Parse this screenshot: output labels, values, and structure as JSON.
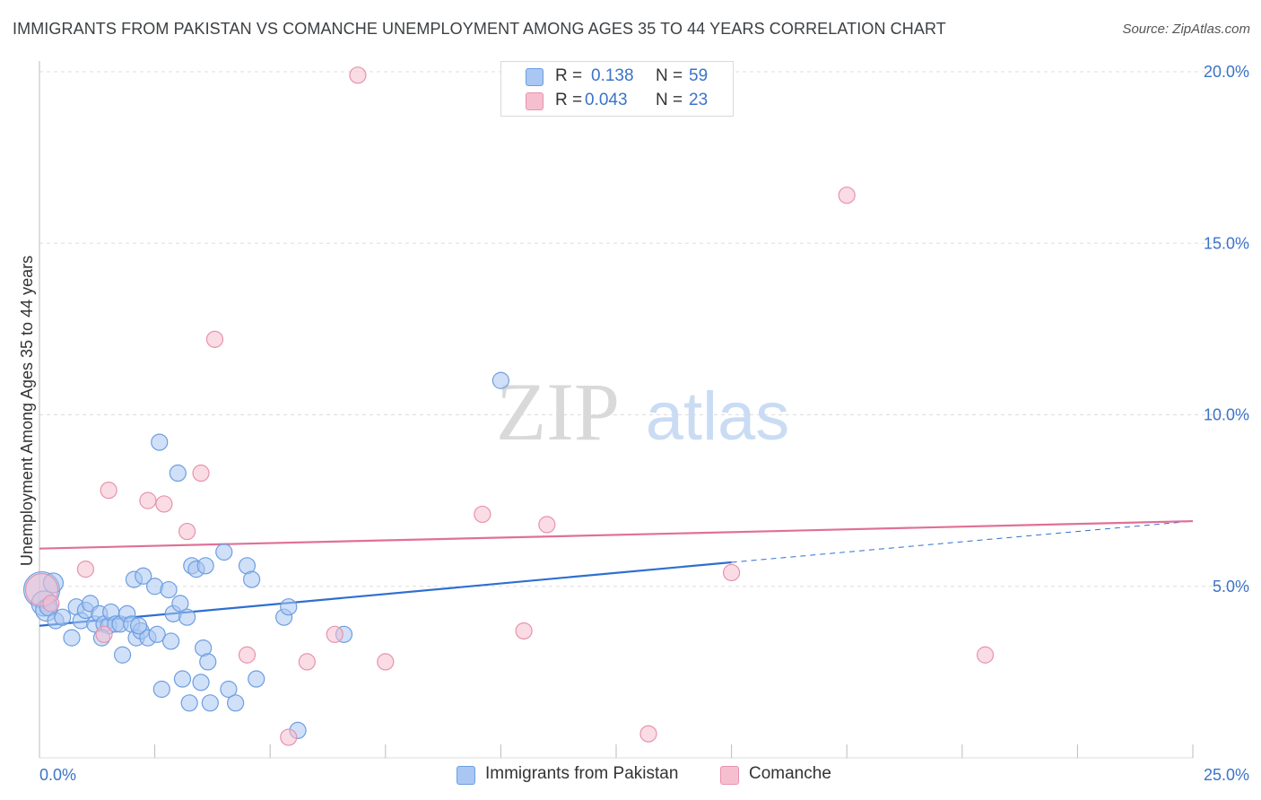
{
  "header": {
    "title": "IMMIGRANTS FROM PAKISTAN VS COMANCHE UNEMPLOYMENT AMONG AGES 35 TO 44 YEARS CORRELATION CHART",
    "source": "Source: ZipAtlas.com"
  },
  "legend": {
    "series1": {
      "r_label": "R =",
      "r_value": "0.138",
      "n_label": "N =",
      "n_value": "59"
    },
    "series2": {
      "r_label": "R =",
      "r_value": "0.043",
      "n_label": "N =",
      "n_value": "23"
    }
  },
  "bottom_legend": {
    "series1": "Immigrants from Pakistan",
    "series2": "Comanche"
  },
  "colors": {
    "blue_fill": "#a9c7f2",
    "blue_stroke": "#6d9ee0",
    "blue_line": "#2f6fd0",
    "pink_fill": "#f6bfd0",
    "pink_stroke": "#e892ae",
    "pink_line": "#e07099",
    "tick_text": "#3b73c8",
    "grid": "#dddddd"
  },
  "chart_data": {
    "type": "scatter",
    "title": "IMMIGRANTS FROM PAKISTAN VS COMANCHE UNEMPLOYMENT AMONG AGES 35 TO 44 YEARS CORRELATION CHART",
    "xlabel": "",
    "ylabel": "Unemployment Among Ages 35 to 44 years",
    "xlim": [
      0,
      25
    ],
    "ylim": [
      0,
      20.5
    ],
    "x_tick_labels": [
      {
        "value": 0,
        "label": "0.0%"
      },
      {
        "value": 25,
        "label": "25.0%"
      }
    ],
    "y_tick_labels": [
      {
        "value": 5,
        "label": "5.0%"
      },
      {
        "value": 10,
        "label": "10.0%"
      },
      {
        "value": 15,
        "label": "15.0%"
      },
      {
        "value": 20,
        "label": "20.0%"
      }
    ],
    "watermark": {
      "part1": "ZIP",
      "part2": "atlas"
    },
    "series": [
      {
        "name": "Immigrants from Pakistan",
        "color": "#a9c7f2",
        "points": [
          [
            0.05,
            4.9,
            20
          ],
          [
            0.1,
            4.5,
            14
          ],
          [
            0.15,
            4.3,
            12
          ],
          [
            0.2,
            4.4,
            10
          ],
          [
            0.3,
            5.1,
            11
          ],
          [
            0.35,
            4.0,
            9
          ],
          [
            0.5,
            4.1,
            9
          ],
          [
            0.7,
            3.5,
            9
          ],
          [
            0.8,
            4.4,
            9
          ],
          [
            0.9,
            4.0,
            9
          ],
          [
            1.0,
            4.3,
            9
          ],
          [
            1.1,
            4.5,
            9
          ],
          [
            1.2,
            3.9,
            9
          ],
          [
            1.3,
            4.2,
            9
          ],
          [
            1.4,
            3.9,
            9
          ],
          [
            1.5,
            3.85,
            9
          ],
          [
            1.55,
            4.25,
            9
          ],
          [
            1.65,
            3.9,
            9
          ],
          [
            1.75,
            3.9,
            9
          ],
          [
            1.8,
            3.0,
            9
          ],
          [
            1.9,
            4.2,
            9
          ],
          [
            2.0,
            3.9,
            9
          ],
          [
            2.05,
            5.2,
            9
          ],
          [
            2.1,
            3.5,
            9
          ],
          [
            2.2,
            3.7,
            9
          ],
          [
            2.25,
            5.3,
            9
          ],
          [
            2.35,
            3.5,
            9
          ],
          [
            2.5,
            5.0,
            9
          ],
          [
            2.55,
            3.6,
            9
          ],
          [
            2.6,
            9.2,
            9
          ],
          [
            2.65,
            2.0,
            9
          ],
          [
            2.8,
            4.9,
            9
          ],
          [
            2.85,
            3.4,
            9
          ],
          [
            2.9,
            4.2,
            9
          ],
          [
            3.0,
            8.3,
            9
          ],
          [
            3.05,
            4.5,
            9
          ],
          [
            3.1,
            2.3,
            9
          ],
          [
            3.2,
            4.1,
            9
          ],
          [
            3.25,
            1.6,
            9
          ],
          [
            3.3,
            5.6,
            9
          ],
          [
            3.4,
            5.5,
            9
          ],
          [
            3.5,
            2.2,
            9
          ],
          [
            3.55,
            3.2,
            9
          ],
          [
            3.6,
            5.6,
            9
          ],
          [
            3.65,
            2.8,
            9
          ],
          [
            3.7,
            1.6,
            9
          ],
          [
            4.0,
            6.0,
            9
          ],
          [
            4.1,
            2.0,
            9
          ],
          [
            4.25,
            1.6,
            9
          ],
          [
            4.5,
            5.6,
            9
          ],
          [
            4.6,
            5.2,
            9
          ],
          [
            4.7,
            2.3,
            9
          ],
          [
            5.3,
            4.1,
            9
          ],
          [
            5.4,
            4.4,
            9
          ],
          [
            5.6,
            0.8,
            9
          ],
          [
            6.6,
            3.6,
            9
          ],
          [
            10.0,
            11.0,
            9
          ],
          [
            2.15,
            3.85,
            9
          ],
          [
            1.35,
            3.5,
            9
          ]
        ]
      },
      {
        "name": "Comanche",
        "color": "#f6bfd0",
        "points": [
          [
            0.05,
            4.9,
            18
          ],
          [
            0.25,
            4.5,
            9
          ],
          [
            1.0,
            5.5,
            9
          ],
          [
            1.4,
            3.6,
            9
          ],
          [
            1.5,
            7.8,
            9
          ],
          [
            2.35,
            7.5,
            9
          ],
          [
            2.7,
            7.4,
            9
          ],
          [
            3.2,
            6.6,
            9
          ],
          [
            3.5,
            8.3,
            9
          ],
          [
            3.8,
            12.2,
            9
          ],
          [
            4.5,
            3.0,
            9
          ],
          [
            5.4,
            0.6,
            9
          ],
          [
            5.8,
            2.8,
            9
          ],
          [
            6.4,
            3.6,
            9
          ],
          [
            6.9,
            19.9,
            9
          ],
          [
            7.5,
            2.8,
            9
          ],
          [
            9.6,
            7.1,
            9
          ],
          [
            10.5,
            3.7,
            9
          ],
          [
            11.0,
            6.8,
            9
          ],
          [
            13.2,
            0.7,
            9
          ],
          [
            15.0,
            5.4,
            9
          ],
          [
            17.5,
            16.4,
            9
          ],
          [
            20.5,
            3.0,
            9
          ]
        ]
      }
    ],
    "trend_lines": [
      {
        "series": "Immigrants from Pakistan",
        "solid": [
          [
            0,
            3.85
          ],
          [
            15,
            5.7
          ]
        ],
        "dashed": [
          [
            15,
            5.7
          ],
          [
            25,
            6.9
          ]
        ]
      },
      {
        "series": "Comanche",
        "solid": [
          [
            0,
            6.1
          ],
          [
            25,
            6.9
          ]
        ]
      }
    ]
  }
}
